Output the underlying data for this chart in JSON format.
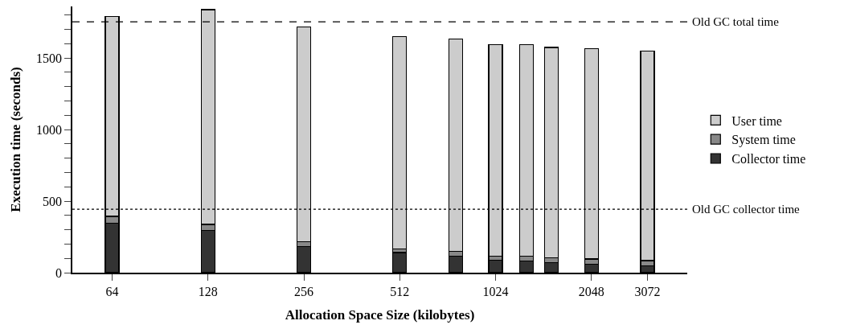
{
  "chart_data": {
    "type": "bar",
    "stacked": true,
    "xlabel": "Allocation Space Size (kilobytes)",
    "ylabel": "Execution time (seconds)",
    "log": "x",
    "x": [
      64,
      128,
      256,
      512,
      768,
      1024,
      1280,
      1536,
      2048,
      3072
    ],
    "series": [
      {
        "name": "Collector time",
        "color": "#333333",
        "values": [
          347,
          294,
          183,
          140,
          117,
          89,
          82,
          71,
          61,
          48
        ]
      },
      {
        "name": "System time",
        "color": "#888888",
        "values": [
          46,
          43,
          33,
          28,
          30,
          28,
          32,
          33,
          34,
          36
        ]
      },
      {
        "name": "User time",
        "color": "#cccccc",
        "values": [
          1397,
          1500,
          1500,
          1483,
          1487,
          1476,
          1481,
          1469,
          1472,
          1466
        ]
      }
    ],
    "xlim": [
      48,
      4096
    ],
    "xticks": [
      64,
      128,
      256,
      512,
      1024,
      2048,
      3072
    ],
    "ylim": [
      0,
      1860
    ],
    "yticks": [
      0,
      {
        "value": 100,
        "label": null
      },
      {
        "value": 200,
        "label": null
      },
      {
        "value": 300,
        "label": null
      },
      {
        "value": 400,
        "label": null
      },
      500,
      {
        "value": 600,
        "label": null
      },
      {
        "value": 700,
        "label": null
      },
      {
        "value": 800,
        "label": null
      },
      {
        "value": 900,
        "label": null
      },
      1000,
      {
        "value": 1100,
        "label": null
      },
      {
        "value": 1200,
        "label": null
      },
      {
        "value": 1300,
        "label": null
      },
      {
        "value": 1400,
        "label": null
      },
      1500,
      {
        "value": 1600,
        "label": null
      },
      {
        "value": 1700,
        "label": null
      },
      {
        "value": 1800,
        "label": null
      }
    ],
    "ref_lines": [
      {
        "axis": "y",
        "value": 1753,
        "label": "Old GC total time",
        "line_style": "dashed"
      },
      {
        "axis": "y",
        "value": 443,
        "label": "Old GC collector time",
        "line_style": "dotted"
      }
    ],
    "legend": "right"
  }
}
